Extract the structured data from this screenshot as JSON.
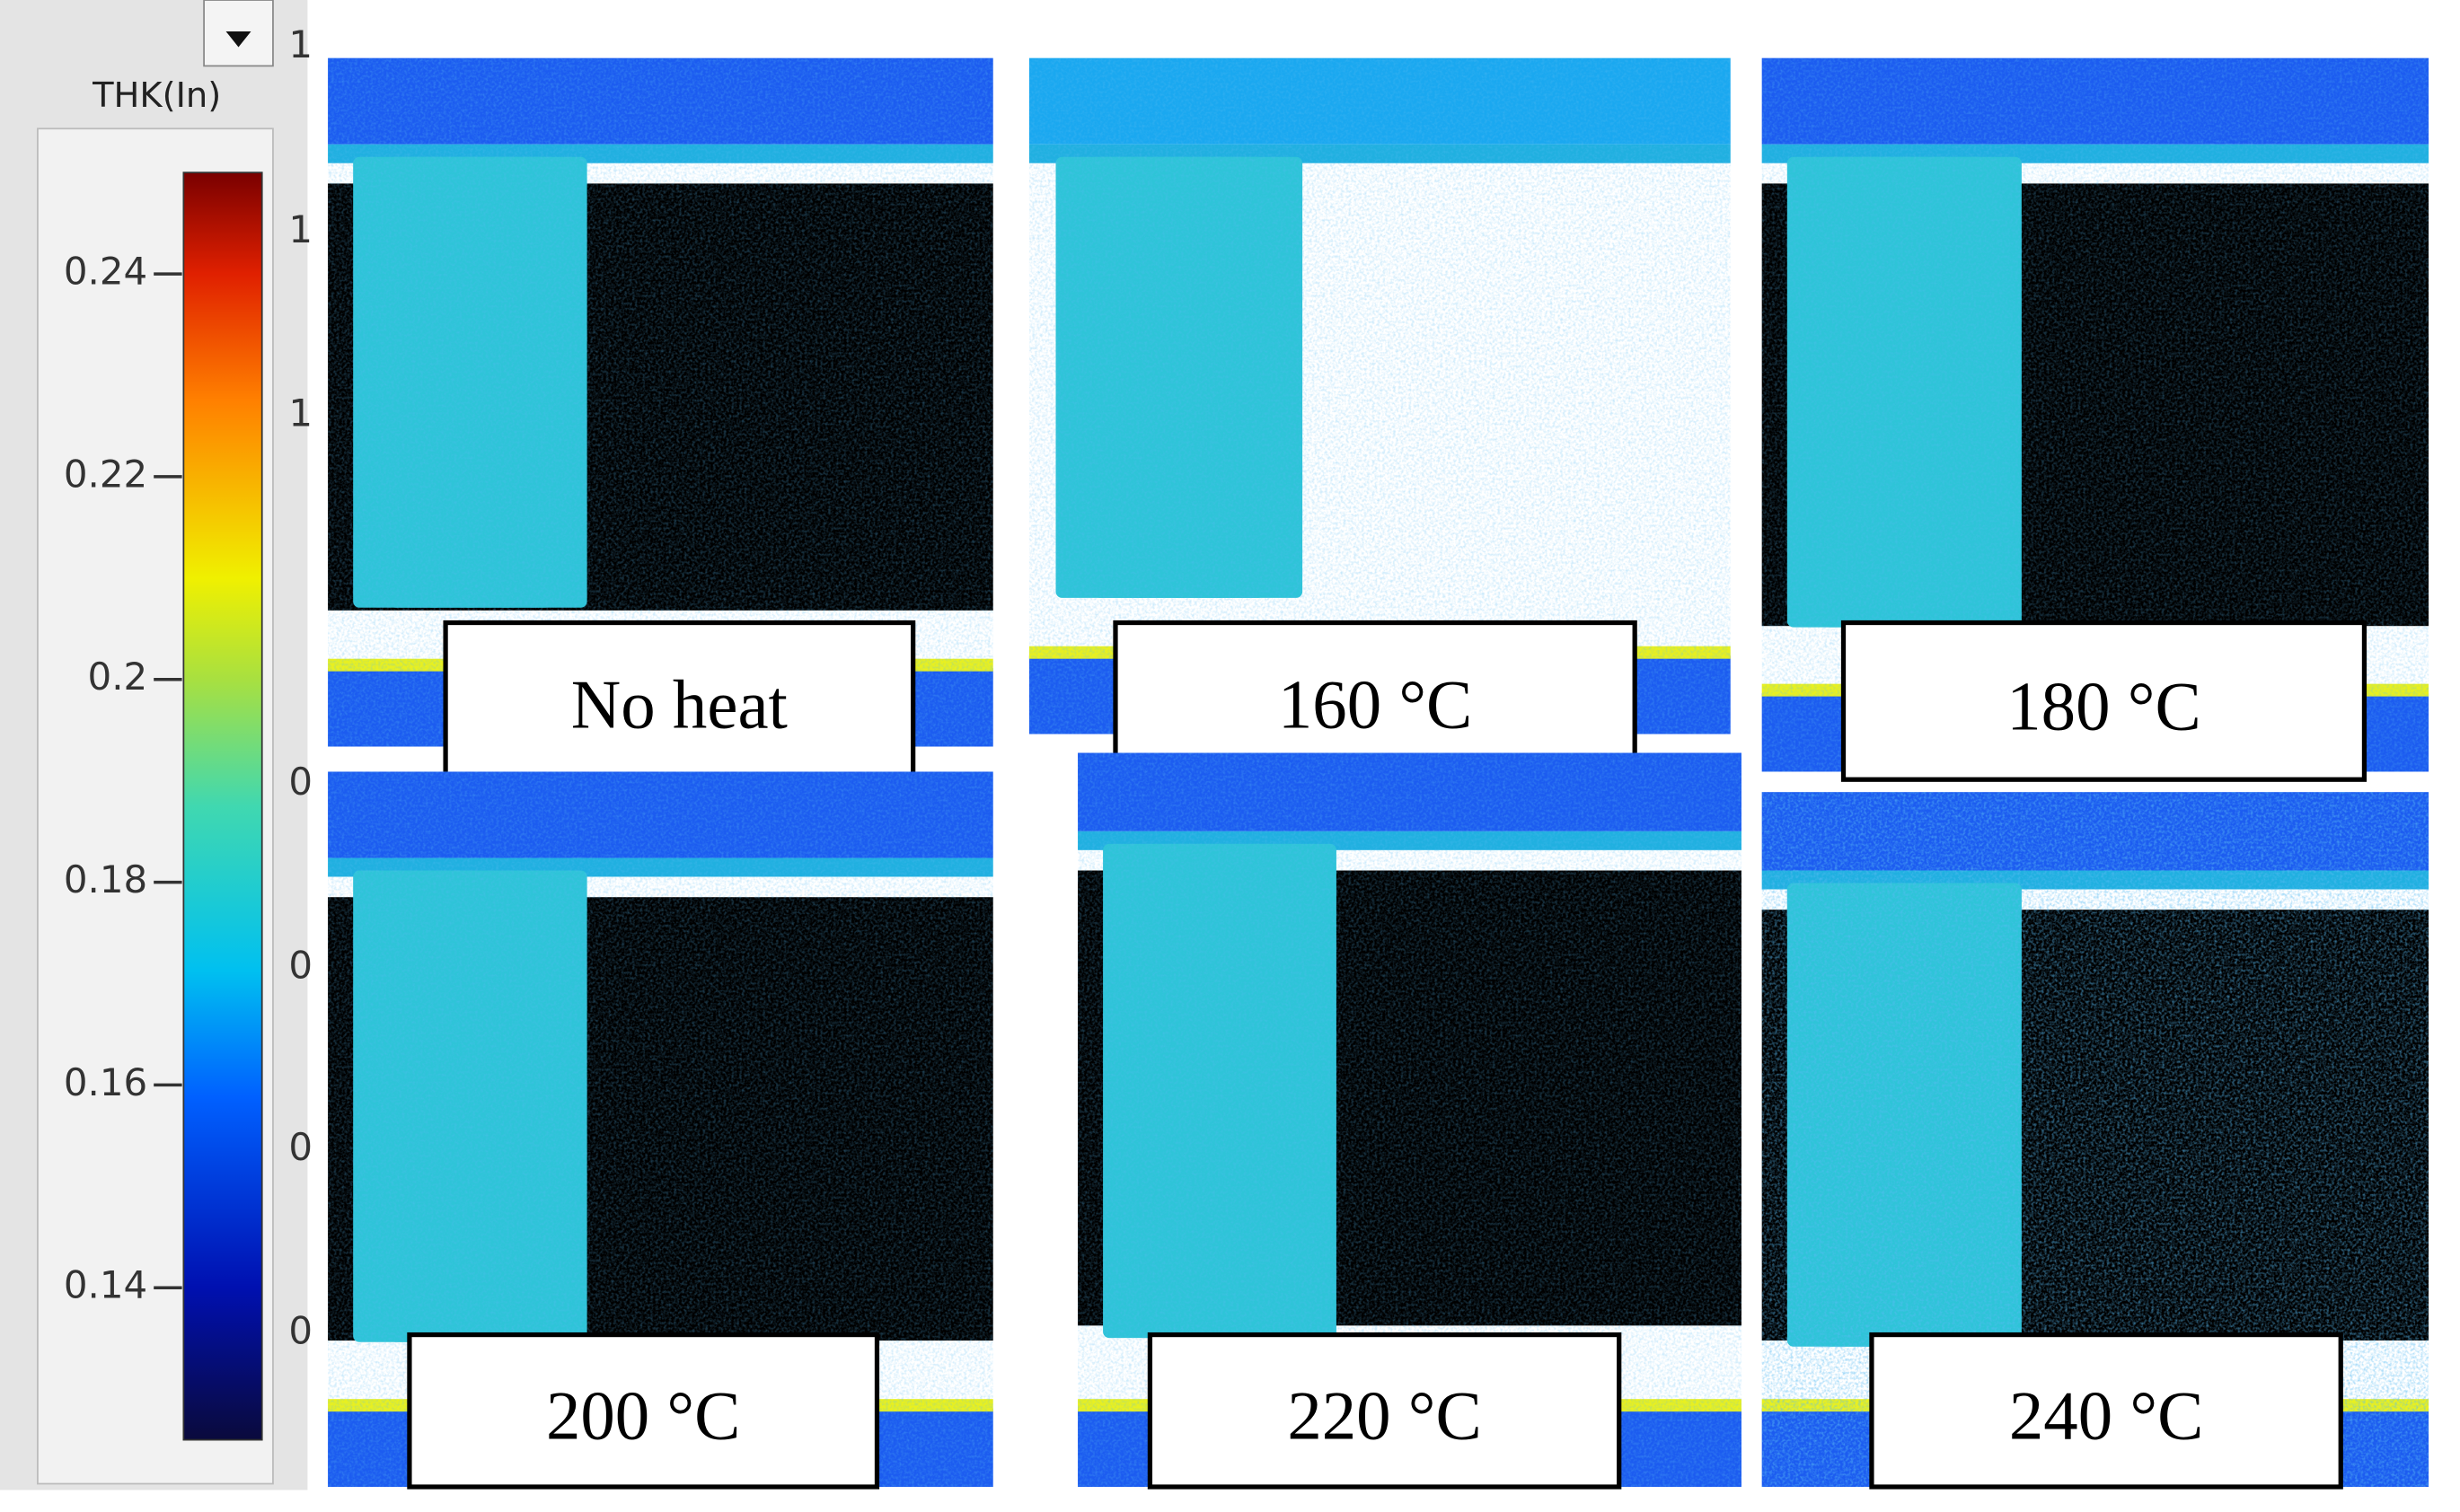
{
  "colorbar": {
    "title": "THK(In)",
    "lim": [
      0.125,
      0.25
    ],
    "ticks": [
      0.14,
      0.16,
      0.18,
      0.2,
      0.22,
      0.24
    ]
  },
  "edge_labels": [
    "1",
    "1",
    "1",
    "0",
    "0",
    "0",
    "0"
  ],
  "panels": [
    {
      "label": "No heat"
    },
    {
      "label": "160 °C"
    },
    {
      "label": "180 °C"
    },
    {
      "label": "200 °C"
    },
    {
      "label": "220 °C"
    },
    {
      "label": "240 °C"
    }
  ]
}
